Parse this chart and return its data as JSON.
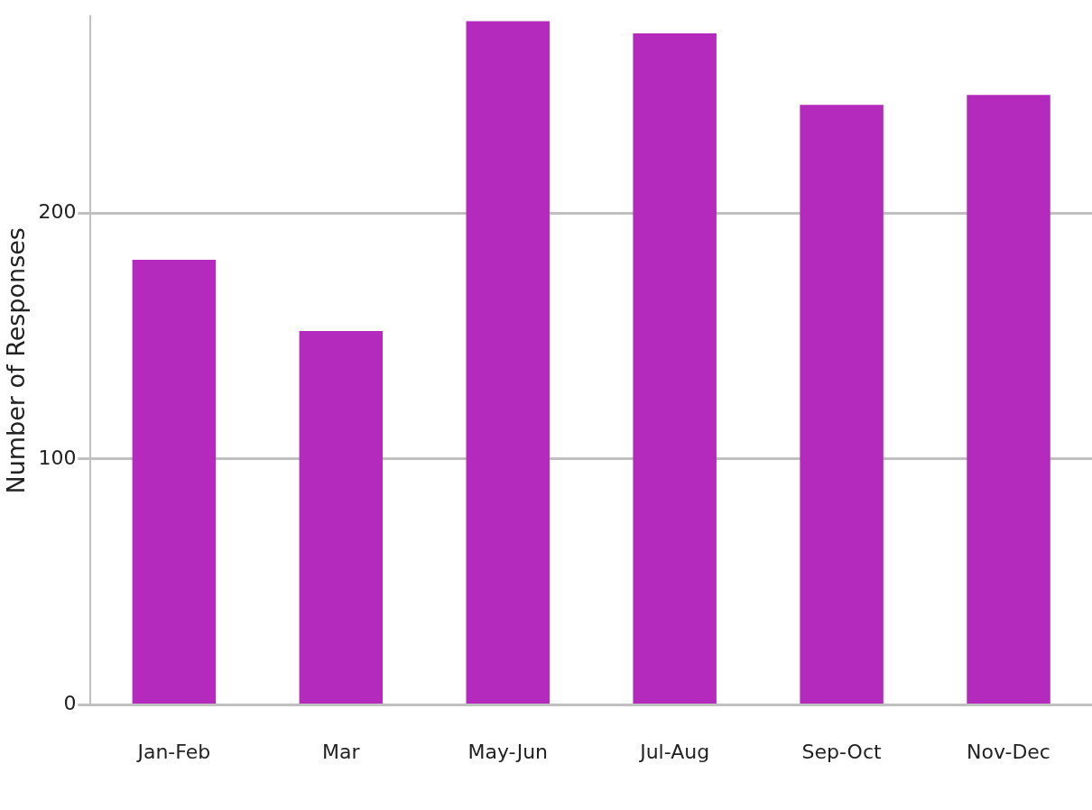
{
  "chart_data": {
    "type": "bar",
    "ylabel": "Number of Responses",
    "categories": [
      "Jan-Feb",
      "Mar",
      "May-Jun",
      "Jul-Aug",
      "Sep-Oct",
      "Nov-Dec"
    ],
    "values": [
      181,
      152,
      278,
      273,
      244,
      248
    ],
    "color": "#b42abd",
    "ylim": [
      0,
      280
    ],
    "yticks": [
      0,
      100,
      200
    ],
    "grid": "y",
    "legend": false
  }
}
